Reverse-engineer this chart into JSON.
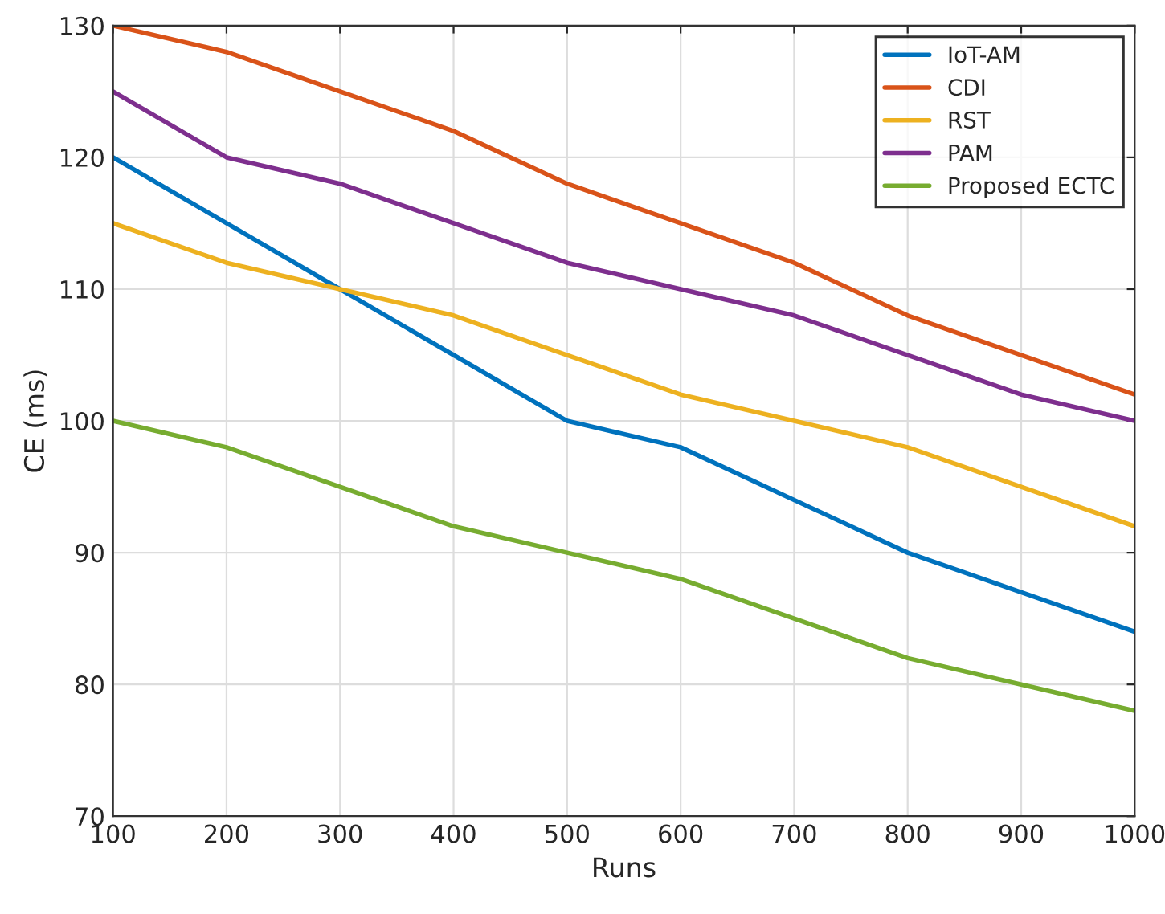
{
  "chart_data": {
    "type": "line",
    "xlabel": "Runs",
    "ylabel": "CE (ms)",
    "x": [
      100,
      200,
      300,
      400,
      500,
      600,
      700,
      800,
      900,
      1000
    ],
    "series": [
      {
        "name": "IoT-AM",
        "color": "#0072bd",
        "values": [
          120,
          115,
          110,
          105,
          100,
          98,
          94,
          90,
          87,
          84
        ]
      },
      {
        "name": "CDI",
        "color": "#d95319",
        "values": [
          130,
          128,
          125,
          122,
          118,
          115,
          112,
          108,
          105,
          102
        ]
      },
      {
        "name": "RST",
        "color": "#edb120",
        "values": [
          115,
          112,
          110,
          108,
          105,
          102,
          100,
          98,
          95,
          92
        ]
      },
      {
        "name": "PAM",
        "color": "#7e2f8e",
        "values": [
          125,
          120,
          118,
          115,
          112,
          110,
          108,
          105,
          102,
          100
        ]
      },
      {
        "name": "Proposed ECTC",
        "color": "#77ac30",
        "values": [
          100,
          98,
          95,
          92,
          90,
          88,
          85,
          82,
          80,
          78
        ]
      }
    ],
    "xlim": [
      100,
      1000
    ],
    "xticks": [
      100,
      200,
      300,
      400,
      500,
      600,
      700,
      800,
      900,
      1000
    ],
    "ylim": [
      70,
      130
    ],
    "yticks": [
      70,
      80,
      90,
      100,
      110,
      120,
      130
    ],
    "grid": true,
    "legend": "top right",
    "marker": "none",
    "line_style": "solid"
  }
}
